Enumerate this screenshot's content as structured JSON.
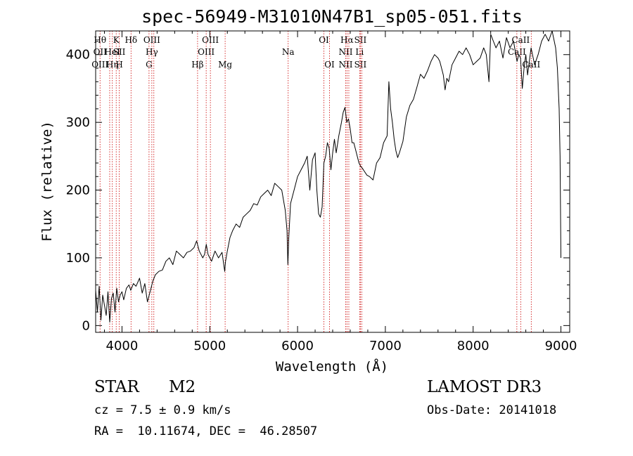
{
  "chart_data": {
    "type": "line",
    "title": "spec-56949-M31010N47B1_sp05-051.fits",
    "xlabel": "Wavelength (Å)",
    "ylabel": "Flux (relative)",
    "xlim": [
      3700,
      9100
    ],
    "ylim": [
      -10,
      435
    ],
    "xticks": [
      4000,
      5000,
      6000,
      7000,
      8000,
      9000
    ],
    "yticks": [
      0,
      100,
      200,
      300,
      400
    ],
    "grid": false,
    "line_color": "#000000",
    "marker_color": "#cc0000",
    "series": [
      {
        "name": "flux",
        "x": [
          3700,
          3720,
          3740,
          3760,
          3780,
          3800,
          3820,
          3840,
          3860,
          3880,
          3900,
          3920,
          3940,
          3960,
          3980,
          4000,
          4020,
          4050,
          4080,
          4100,
          4130,
          4160,
          4200,
          4230,
          4260,
          4290,
          4320,
          4350,
          4380,
          4420,
          4460,
          4500,
          4540,
          4580,
          4620,
          4660,
          4700,
          4740,
          4780,
          4820,
          4850,
          4880,
          4920,
          4940,
          4960,
          4980,
          5000,
          5020,
          5060,
          5100,
          5140,
          5170,
          5180,
          5200,
          5230,
          5260,
          5300,
          5340,
          5380,
          5420,
          5460,
          5500,
          5540,
          5580,
          5620,
          5660,
          5700,
          5740,
          5780,
          5820,
          5860,
          5880,
          5890,
          5900,
          5920,
          5960,
          6000,
          6040,
          6080,
          6110,
          6140,
          6170,
          6200,
          6220,
          6240,
          6260,
          6280,
          6300,
          6320,
          6340,
          6360,
          6380,
          6400,
          6420,
          6440,
          6470,
          6500,
          6520,
          6540,
          6560,
          6580,
          6600,
          6620,
          6640,
          6660,
          6680,
          6700,
          6720,
          6740,
          6760,
          6790,
          6820,
          6860,
          6900,
          6940,
          6980,
          7020,
          7040,
          7060,
          7080,
          7100,
          7120,
          7140,
          7160,
          7200,
          7240,
          7280,
          7320,
          7360,
          7400,
          7440,
          7480,
          7520,
          7560,
          7600,
          7620,
          7640,
          7660,
          7680,
          7700,
          7720,
          7760,
          7800,
          7840,
          7880,
          7920,
          7960,
          8000,
          8040,
          8080,
          8120,
          8150,
          8180,
          8200,
          8230,
          8260,
          8300,
          8340,
          8380,
          8420,
          8460,
          8500,
          8520,
          8540,
          8560,
          8580,
          8600,
          8620,
          8660,
          8700,
          8740,
          8780,
          8820,
          8860,
          8900,
          8940,
          8960,
          8980,
          8990,
          9000
        ],
        "y": [
          52,
          20,
          58,
          8,
          45,
          30,
          15,
          50,
          5,
          40,
          48,
          20,
          55,
          35,
          45,
          50,
          38,
          55,
          60,
          52,
          62,
          58,
          70,
          48,
          62,
          35,
          50,
          65,
          75,
          80,
          82,
          95,
          100,
          90,
          110,
          105,
          100,
          108,
          110,
          115,
          125,
          110,
          100,
          105,
          120,
          105,
          100,
          95,
          110,
          100,
          108,
          80,
          95,
          110,
          130,
          140,
          150,
          145,
          160,
          165,
          170,
          180,
          178,
          190,
          195,
          200,
          192,
          210,
          205,
          200,
          170,
          140,
          90,
          130,
          180,
          200,
          220,
          230,
          240,
          250,
          200,
          245,
          255,
          200,
          165,
          160,
          175,
          240,
          250,
          270,
          262,
          230,
          255,
          275,
          255,
          280,
          300,
          315,
          322,
          300,
          305,
          290,
          270,
          270,
          260,
          250,
          240,
          235,
          232,
          228,
          222,
          220,
          215,
          240,
          248,
          270,
          280,
          360,
          320,
          300,
          275,
          258,
          248,
          255,
          272,
          308,
          325,
          334,
          352,
          371,
          365,
          376,
          390,
          400,
          395,
          390,
          380,
          370,
          348,
          365,
          360,
          385,
          395,
          405,
          400,
          410,
          400,
          385,
          390,
          395,
          410,
          400,
          360,
          430,
          420,
          410,
          420,
          395,
          425,
          410,
          420,
          390,
          400,
          395,
          350,
          380,
          400,
          370,
          410,
          385,
          400,
          420,
          430,
          420,
          435,
          410,
          380,
          320,
          250,
          100
        ]
      }
    ],
    "line_markers": [
      {
        "x": 3750,
        "labels": [
          "Hθ",
          "OII",
          "OIII"
        ]
      },
      {
        "x": 3860,
        "labels": [
          "",
          "",
          ""
        ]
      },
      {
        "x": 3890,
        "labels": [
          "",
          "HeI",
          "Hη"
        ]
      },
      {
        "x": 3934,
        "labels": [
          "K",
          "",
          ""
        ]
      },
      {
        "x": 3969,
        "labels": [
          "",
          "SII",
          "H"
        ]
      },
      {
        "x": 4103,
        "labels": [
          "Hδ",
          "",
          ""
        ]
      },
      {
        "x": 4308,
        "labels": [
          "",
          "",
          "G"
        ]
      },
      {
        "x": 4340,
        "labels": [
          "OIII",
          "Hγ",
          ""
        ]
      },
      {
        "x": 4363,
        "labels": [
          "",
          "",
          ""
        ]
      },
      {
        "x": 4861,
        "labels": [
          "",
          "",
          "Hβ"
        ]
      },
      {
        "x": 4959,
        "labels": [
          "",
          "OIII",
          ""
        ]
      },
      {
        "x": 5007,
        "labels": [
          "OIII",
          "",
          ""
        ]
      },
      {
        "x": 5175,
        "labels": [
          "",
          "",
          "Mg"
        ]
      },
      {
        "x": 5893,
        "labels": [
          "",
          "Na",
          ""
        ]
      },
      {
        "x": 6300,
        "labels": [
          "OI",
          "",
          ""
        ]
      },
      {
        "x": 6364,
        "labels": [
          "",
          "",
          "OI"
        ]
      },
      {
        "x": 6548,
        "labels": [
          "",
          "NII",
          "NII"
        ]
      },
      {
        "x": 6563,
        "labels": [
          "Hα",
          "",
          ""
        ]
      },
      {
        "x": 6584,
        "labels": [
          "",
          "",
          ""
        ]
      },
      {
        "x": 6707,
        "labels": [
          "",
          "Li",
          ""
        ]
      },
      {
        "x": 6716,
        "labels": [
          "SII",
          "",
          "SII"
        ]
      },
      {
        "x": 6731,
        "labels": [
          "",
          "",
          ""
        ]
      },
      {
        "x": 8498,
        "labels": [
          "",
          "CaII",
          ""
        ]
      },
      {
        "x": 8542,
        "labels": [
          "CaII",
          "",
          ""
        ]
      },
      {
        "x": 8662,
        "labels": [
          "",
          "",
          "CaII"
        ]
      }
    ]
  },
  "info": {
    "object_class": "STAR",
    "subclass": "M2",
    "survey": "LAMOST DR3",
    "cz": "cz = 7.5 ± 0.9 km/s",
    "obs_date": "Obs-Date: 20141018",
    "coords": "RA =  10.11674, DEC =  46.28507"
  }
}
